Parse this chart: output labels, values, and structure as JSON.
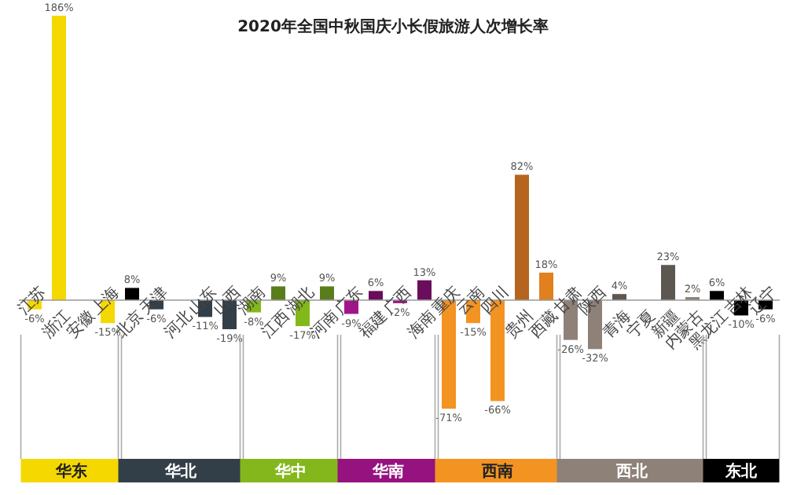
{
  "chart_data": {
    "type": "bar",
    "title": "2020年全国中秋国庆小长假旅游人次增长率",
    "categories": [
      "江苏",
      "浙江",
      "安徽",
      "上海",
      "北京",
      "天津",
      "河北",
      "山东",
      "山西",
      "湖南",
      "江西",
      "湖北",
      "河南",
      "广东",
      "福建",
      "广西",
      "海南",
      "重庆",
      "云南",
      "四川",
      "贵州",
      "西藏",
      "甘肃",
      "陕西",
      "青海",
      "宁夏",
      "新疆",
      "内蒙古",
      "黑龙江",
      "吉林",
      "辽宁"
    ],
    "series": [
      {
        "name": "华东",
        "color": "#f5d800",
        "values": [
          -6,
          186,
          null,
          -15,
          null,
          null,
          null,
          null,
          null,
          null,
          null,
          null,
          null,
          null,
          null,
          null,
          null,
          null,
          null,
          null,
          null,
          null,
          null,
          null,
          null,
          null,
          null,
          null,
          null,
          null,
          null
        ],
        "value_labels": [
          "-6%",
          "186%",
          null,
          "-15%",
          null,
          null,
          null,
          null,
          null,
          null,
          null,
          null,
          null,
          null,
          null,
          null,
          null,
          null,
          null,
          null,
          null,
          null,
          null,
          null,
          null,
          null,
          null,
          null,
          null,
          null,
          null
        ],
        "colors": [
          "#f5d800",
          "#f5d800",
          null,
          "#f5d800",
          null,
          null,
          null,
          null,
          null,
          null,
          null,
          null,
          null,
          null,
          null,
          null,
          null,
          null,
          null,
          null,
          null,
          null,
          null,
          null,
          null,
          null,
          null,
          null,
          null,
          null,
          null
        ]
      },
      {
        "name": "华北",
        "color": "#333f48",
        "values": [
          null,
          null,
          null,
          null,
          8,
          -6,
          null,
          -11,
          -19,
          null,
          null,
          null,
          null,
          null,
          null,
          null,
          null,
          null,
          null,
          null,
          null,
          null,
          null,
          null,
          null,
          null,
          null,
          null,
          null,
          null,
          null
        ],
        "value_labels": [
          null,
          null,
          null,
          null,
          "8%",
          "-6%",
          null,
          "-11%",
          "-19%",
          null,
          null,
          null,
          null,
          null,
          null,
          null,
          null,
          null,
          null,
          null,
          null,
          null,
          null,
          null,
          null,
          null,
          null,
          null,
          null,
          null,
          null
        ],
        "colors": [
          null,
          null,
          null,
          null,
          "#000000",
          "#333f48",
          null,
          "#333f48",
          "#333f48",
          null,
          null,
          null,
          null,
          null,
          null,
          null,
          null,
          null,
          null,
          null,
          null,
          null,
          null,
          null,
          null,
          null,
          null,
          null,
          null,
          null,
          null
        ]
      },
      {
        "name": "华中",
        "color": "#84b71c",
        "values": [
          null,
          null,
          null,
          null,
          null,
          null,
          null,
          null,
          null,
          -8,
          9,
          -17,
          9,
          null,
          null,
          null,
          null,
          null,
          null,
          null,
          null,
          null,
          null,
          null,
          null,
          null,
          null,
          null,
          null,
          null,
          null
        ],
        "value_labels": [
          null,
          null,
          null,
          null,
          null,
          null,
          null,
          null,
          null,
          "-8%",
          "9%",
          "-17%",
          "9%",
          null,
          null,
          null,
          null,
          null,
          null,
          null,
          null,
          null,
          null,
          null,
          null,
          null,
          null,
          null,
          null,
          null,
          null
        ],
        "colors": [
          null,
          null,
          null,
          null,
          null,
          null,
          null,
          null,
          null,
          "#84b71c",
          "#5a7d1c",
          "#84b71c",
          "#5a7d1c",
          null,
          null,
          null,
          null,
          null,
          null,
          null,
          null,
          null,
          null,
          null,
          null,
          null,
          null,
          null,
          null,
          null,
          null
        ]
      },
      {
        "name": "华南",
        "color": "#96127f",
        "values": [
          null,
          null,
          null,
          null,
          null,
          null,
          null,
          null,
          null,
          null,
          null,
          null,
          null,
          -9,
          6,
          -2,
          13,
          null,
          null,
          null,
          null,
          null,
          null,
          null,
          null,
          null,
          null,
          null,
          null,
          null,
          null
        ],
        "value_labels": [
          null,
          null,
          null,
          null,
          null,
          null,
          null,
          null,
          null,
          null,
          null,
          null,
          null,
          "-9%",
          "6%",
          "-2%",
          "13%",
          null,
          null,
          null,
          null,
          null,
          null,
          null,
          null,
          null,
          null,
          null,
          null,
          null,
          null
        ],
        "colors": [
          null,
          null,
          null,
          null,
          null,
          null,
          null,
          null,
          null,
          null,
          null,
          null,
          null,
          "#a0168a",
          "#6a0d5c",
          "#a0168a",
          "#6a0d5c",
          null,
          null,
          null,
          null,
          null,
          null,
          null,
          null,
          null,
          null,
          null,
          null,
          null,
          null
        ]
      },
      {
        "name": "西南",
        "color": "#f39322",
        "values": [
          null,
          null,
          null,
          null,
          null,
          null,
          null,
          null,
          null,
          null,
          null,
          null,
          null,
          null,
          null,
          null,
          null,
          -71,
          -15,
          -66,
          82,
          18,
          null,
          null,
          null,
          null,
          null,
          null,
          null,
          null,
          null
        ],
        "value_labels": [
          null,
          null,
          null,
          null,
          null,
          null,
          null,
          null,
          null,
          null,
          null,
          null,
          null,
          null,
          null,
          null,
          null,
          "-71%",
          "-15%",
          "-66%",
          "82%",
          "18%",
          null,
          null,
          null,
          null,
          null,
          null,
          null,
          null,
          null
        ],
        "colors": [
          null,
          null,
          null,
          null,
          null,
          null,
          null,
          null,
          null,
          null,
          null,
          null,
          null,
          null,
          null,
          null,
          null,
          "#f39322",
          "#f39322",
          "#f39322",
          "#b5651d",
          "#e0801e",
          null,
          null,
          null,
          null,
          null,
          null,
          null,
          null,
          null
        ]
      },
      {
        "name": "西北",
        "color": "#8e8178",
        "values": [
          null,
          null,
          null,
          null,
          null,
          null,
          null,
          null,
          null,
          null,
          null,
          null,
          null,
          null,
          null,
          null,
          null,
          null,
          null,
          null,
          null,
          null,
          -26,
          -32,
          4,
          null,
          23,
          2,
          null,
          null,
          null
        ],
        "value_labels": [
          null,
          null,
          null,
          null,
          null,
          null,
          null,
          null,
          null,
          null,
          null,
          null,
          null,
          null,
          null,
          null,
          null,
          null,
          null,
          null,
          null,
          null,
          "-26%",
          "-32%",
          "4%",
          null,
          "23%",
          "2%",
          null,
          null,
          null
        ],
        "colors": [
          null,
          null,
          null,
          null,
          null,
          null,
          null,
          null,
          null,
          null,
          null,
          null,
          null,
          null,
          null,
          null,
          null,
          null,
          null,
          null,
          null,
          null,
          "#8e8178",
          "#8e8178",
          "#5f574f",
          null,
          "#5c5750",
          "#8e8178",
          null,
          null,
          null
        ]
      },
      {
        "name": "东北",
        "color": "#000000",
        "values": [
          null,
          null,
          null,
          null,
          null,
          null,
          null,
          null,
          null,
          null,
          null,
          null,
          null,
          null,
          null,
          null,
          null,
          null,
          null,
          null,
          null,
          null,
          null,
          null,
          null,
          null,
          null,
          null,
          6,
          -10,
          -6
        ],
        "value_labels": [
          null,
          null,
          null,
          null,
          null,
          null,
          null,
          null,
          null,
          null,
          null,
          null,
          null,
          null,
          null,
          null,
          null,
          null,
          null,
          null,
          null,
          null,
          null,
          null,
          null,
          null,
          null,
          null,
          "6%",
          "-10%",
          "-6%"
        ],
        "colors": [
          null,
          null,
          null,
          null,
          null,
          null,
          null,
          null,
          null,
          null,
          null,
          null,
          null,
          null,
          null,
          null,
          null,
          null,
          null,
          null,
          null,
          null,
          null,
          null,
          null,
          null,
          null,
          null,
          "#000000",
          "#000000",
          "#000000"
        ]
      }
    ]
  }
}
